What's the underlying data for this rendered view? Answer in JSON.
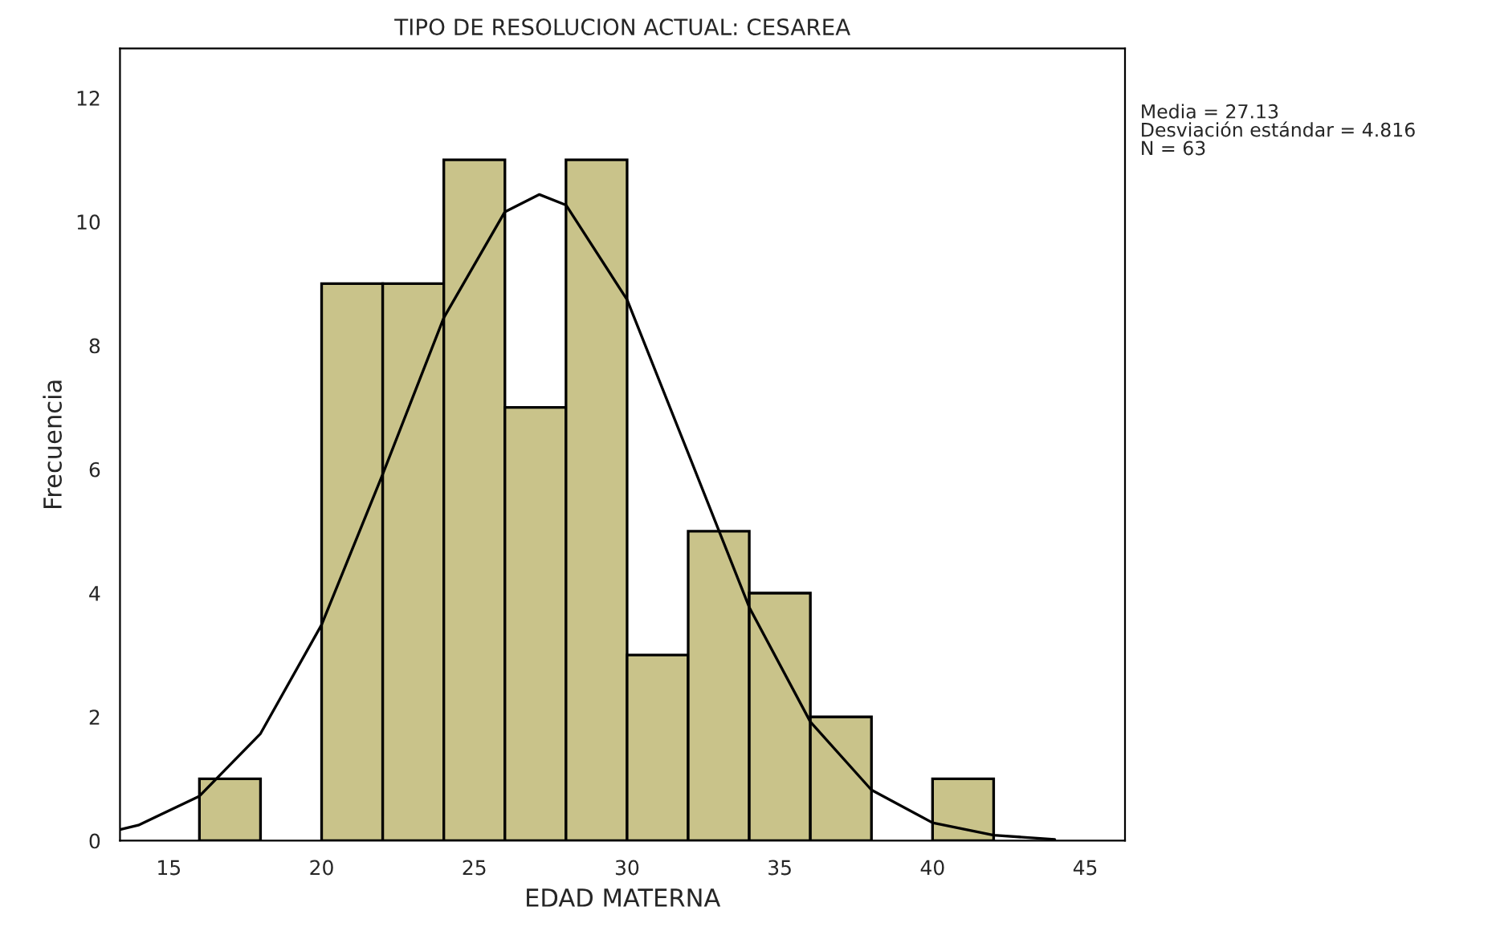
{
  "chart_data": {
    "type": "histogram",
    "title": "TIPO DE RESOLUCION ACTUAL: CESAREA",
    "xlabel": "EDAD MATERNA",
    "ylabel": "Frecuencia",
    "bins": [
      16,
      18,
      20,
      22,
      24,
      26,
      28,
      30,
      32,
      34,
      36,
      38,
      40,
      42
    ],
    "values": [
      1,
      0,
      9,
      9,
      11,
      7,
      11,
      3,
      5,
      4,
      2,
      0,
      1
    ],
    "color": "#c9c38a",
    "series": [
      {
        "type": "line",
        "color": "#000000",
        "x": [
          13.4,
          14,
          16,
          18,
          20,
          22,
          24,
          26,
          27.13,
          28,
          30,
          32,
          34,
          36,
          38,
          40,
          42,
          44
        ],
        "values": [
          0.18,
          0.25,
          0.72,
          1.73,
          3.49,
          5.92,
          8.45,
          10.16,
          10.44,
          10.27,
          8.74,
          6.26,
          3.77,
          1.92,
          0.82,
          0.29,
          0.09,
          0.02
        ]
      }
    ],
    "xlim": [
      13.4,
      46.3
    ],
    "xticks": [
      15,
      20,
      25,
      30,
      35,
      40,
      45
    ],
    "ylim": [
      0,
      12.8
    ],
    "yticks": [
      0,
      2,
      4,
      6,
      8,
      10,
      12
    ],
    "grid": false,
    "annotations": [
      "Media = 27.13",
      "Desviación estándar = 4.816",
      "N = 63"
    ]
  }
}
